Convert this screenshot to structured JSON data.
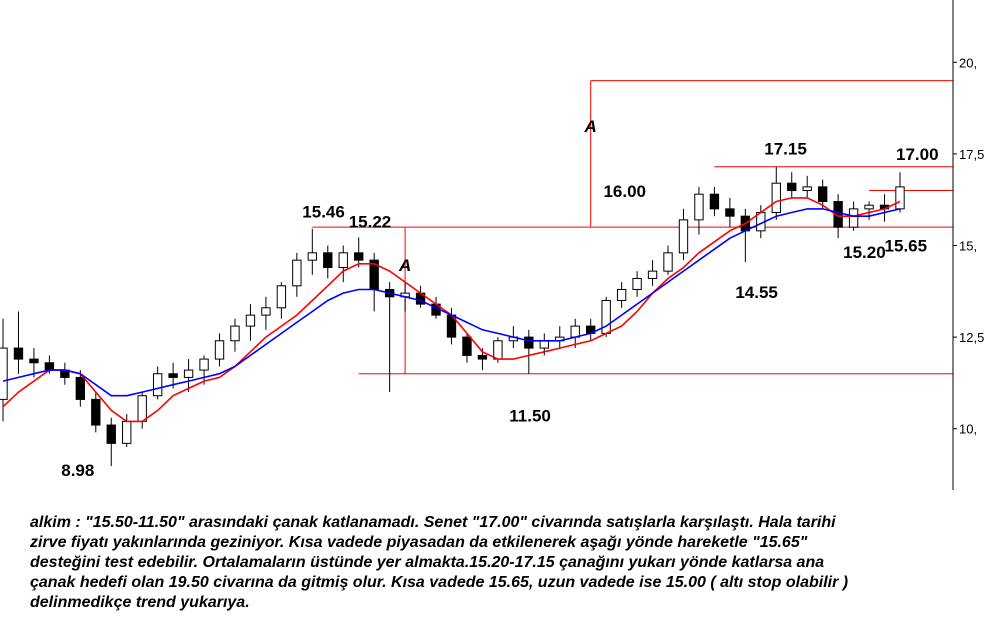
{
  "chart_data": {
    "type": "candlestick",
    "title": "",
    "ticker": "alkim",
    "y_axis": {
      "ticks": [
        10.0,
        12.5,
        15.0,
        17.5,
        20.0
      ],
      "tick_labels": [
        "10,",
        "12,5",
        "15,",
        "17,5",
        "20,"
      ],
      "range": [
        8.3,
        21.7
      ],
      "position": "right"
    },
    "grid": false,
    "moving_averages": [
      {
        "color": "#ff0000",
        "role": "short-term average",
        "values": [
          10.6,
          11.0,
          11.3,
          11.6,
          11.6,
          11.5,
          11.0,
          10.5,
          10.2,
          10.2,
          10.5,
          10.9,
          11.1,
          11.3,
          11.4,
          11.7,
          12.1,
          12.5,
          12.8,
          13.1,
          13.5,
          13.9,
          14.3,
          14.5,
          14.5,
          14.3,
          14.0,
          13.7,
          13.4,
          13.1,
          12.6,
          12.1,
          11.9,
          11.9,
          12.0,
          12.1,
          12.2,
          12.3,
          12.4,
          12.6,
          12.8,
          13.2,
          13.7,
          14.1,
          14.4,
          14.8,
          15.1,
          15.4,
          15.6,
          15.9,
          16.2,
          16.3,
          16.3,
          16.1,
          15.8,
          15.8,
          15.9,
          16.0,
          16.2
        ]
      },
      {
        "color": "#0000ff",
        "role": "long-term average",
        "values": [
          11.3,
          11.4,
          11.5,
          11.6,
          11.6,
          11.5,
          11.2,
          10.9,
          10.9,
          11.0,
          11.1,
          11.2,
          11.3,
          11.4,
          11.5,
          11.7,
          12.0,
          12.3,
          12.6,
          12.9,
          13.2,
          13.5,
          13.7,
          13.8,
          13.8,
          13.7,
          13.6,
          13.5,
          13.3,
          13.1,
          12.9,
          12.7,
          12.6,
          12.5,
          12.4,
          12.4,
          12.4,
          12.5,
          12.6,
          12.8,
          13.1,
          13.4,
          13.7,
          14.0,
          14.3,
          14.6,
          14.9,
          15.2,
          15.4,
          15.6,
          15.8,
          15.9,
          16.0,
          16.0,
          15.9,
          15.8,
          15.8,
          15.9,
          16.0
        ]
      }
    ],
    "price_bars_approx": [
      [
        10.8,
        13.0,
        10.2,
        12.2
      ],
      [
        12.2,
        13.2,
        11.5,
        11.9
      ],
      [
        11.9,
        12.2,
        11.4,
        11.8
      ],
      [
        11.8,
        12.0,
        11.5,
        11.6
      ],
      [
        11.6,
        11.8,
        11.2,
        11.4
      ],
      [
        11.4,
        11.6,
        10.6,
        10.8
      ],
      [
        10.8,
        11.0,
        9.9,
        10.1
      ],
      [
        10.1,
        10.3,
        8.98,
        9.6
      ],
      [
        9.6,
        10.4,
        9.5,
        10.2
      ],
      [
        10.2,
        11.0,
        10.0,
        10.9
      ],
      [
        10.9,
        11.7,
        10.8,
        11.5
      ],
      [
        11.5,
        11.8,
        11.1,
        11.4
      ],
      [
        11.4,
        11.9,
        11.0,
        11.6
      ],
      [
        11.6,
        12.0,
        11.2,
        11.9
      ],
      [
        11.9,
        12.6,
        11.7,
        12.4
      ],
      [
        12.4,
        13.0,
        12.1,
        12.8
      ],
      [
        12.8,
        13.4,
        12.4,
        13.1
      ],
      [
        13.1,
        13.6,
        12.7,
        13.3
      ],
      [
        13.3,
        14.0,
        13.0,
        13.9
      ],
      [
        13.9,
        14.8,
        13.6,
        14.6
      ],
      [
        14.6,
        15.46,
        14.2,
        14.8
      ],
      [
        14.8,
        15.0,
        14.1,
        14.4
      ],
      [
        14.4,
        15.0,
        14.0,
        14.8
      ],
      [
        14.8,
        15.22,
        14.4,
        14.6
      ],
      [
        14.6,
        14.8,
        13.2,
        13.8
      ],
      [
        13.8,
        14.0,
        11.0,
        13.6
      ],
      [
        13.6,
        14.0,
        13.2,
        13.7
      ],
      [
        13.7,
        13.9,
        13.3,
        13.4
      ],
      [
        13.4,
        13.6,
        13.0,
        13.1
      ],
      [
        13.1,
        13.3,
        12.3,
        12.5
      ],
      [
        12.5,
        12.6,
        11.8,
        12.0
      ],
      [
        12.0,
        12.2,
        11.6,
        11.9
      ],
      [
        11.9,
        12.5,
        11.8,
        12.4
      ],
      [
        12.4,
        12.8,
        12.2,
        12.5
      ],
      [
        12.5,
        12.7,
        11.5,
        12.2
      ],
      [
        12.2,
        12.6,
        12.0,
        12.4
      ],
      [
        12.4,
        12.8,
        12.2,
        12.5
      ],
      [
        12.5,
        13.0,
        12.2,
        12.8
      ],
      [
        12.8,
        13.0,
        12.4,
        12.6
      ],
      [
        12.6,
        13.6,
        12.5,
        13.5
      ],
      [
        13.5,
        14.0,
        13.3,
        13.8
      ],
      [
        13.8,
        14.3,
        13.6,
        14.1
      ],
      [
        14.1,
        14.6,
        13.9,
        14.3
      ],
      [
        14.3,
        15.0,
        14.2,
        14.8
      ],
      [
        14.8,
        16.0,
        14.6,
        15.7
      ],
      [
        15.7,
        16.6,
        15.3,
        16.4
      ],
      [
        16.4,
        16.6,
        15.8,
        16.0
      ],
      [
        16.0,
        16.3,
        15.5,
        15.8
      ],
      [
        15.8,
        16.0,
        14.55,
        15.4
      ],
      [
        15.4,
        16.1,
        15.2,
        15.9
      ],
      [
        15.9,
        17.15,
        15.7,
        16.7
      ],
      [
        16.7,
        17.0,
        16.3,
        16.5
      ],
      [
        16.5,
        16.9,
        16.3,
        16.6
      ],
      [
        16.6,
        16.8,
        16.0,
        16.2
      ],
      [
        16.2,
        16.4,
        15.2,
        15.5
      ],
      [
        15.5,
        16.2,
        15.4,
        16.0
      ],
      [
        16.0,
        16.2,
        15.7,
        16.1
      ],
      [
        16.1,
        16.4,
        15.65,
        16.0
      ],
      [
        16.0,
        17.0,
        15.9,
        16.6
      ]
    ],
    "price_levels": [
      {
        "value": 19.5,
        "color": "#ff0000",
        "role": "target"
      },
      {
        "value": 17.15,
        "color": "#ff0000",
        "role": "resistance"
      },
      {
        "value": 16.5,
        "color": "#ff0000",
        "role": "level"
      },
      {
        "value": 15.5,
        "color": "#ff0000",
        "role": "support"
      },
      {
        "value": 11.5,
        "color": "#ff0000",
        "role": "support"
      }
    ],
    "measured_moves": [
      {
        "label": "A",
        "from": 11.5,
        "to": 15.5,
        "at_bar": 26
      },
      {
        "label": "A",
        "from": 15.5,
        "to": 19.5,
        "at_bar": 38
      }
    ],
    "annotations": [
      "15.46",
      "15.22",
      "17.15",
      "17.00",
      "16.00",
      "14.55",
      "15.20",
      "15.65",
      "11.50",
      "8.98",
      "A",
      "A"
    ]
  },
  "commentary": "alkim : \"15.50-11.50\" arasındaki çanak katlanamadı. Senet \"17.00\" civarında satışlarla karşılaştı. Hala tarihi\nzirve fiyatı yakınlarında geziniyor. Kısa vadede piyasadan da etkilenerek aşağı yönde hareketle \"15.65\"\ndesteğini test edebilir. Ortalamaların üstünde yer almakta.15.20-17.15 çanağını yukarı yönde katlarsa ana\nçanak hedefi olan 19.50 civarına da gitmiş olur. Kısa vadede 15.65, uzun vadede ise 15.00 ( altı stop olabilir )\ndelinmedikçe trend yukarıya."
}
